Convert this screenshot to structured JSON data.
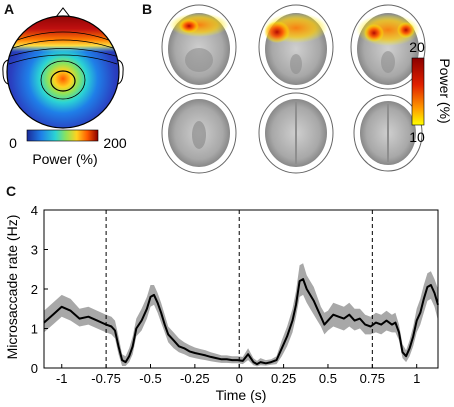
{
  "panels": {
    "a": {
      "letter": "A",
      "colorbar_min": "0",
      "colorbar_max": "200",
      "colorbar_label": "Power (%)"
    },
    "b": {
      "letter": "B",
      "colorbar_top": "20",
      "colorbar_bottom": "10",
      "colorbar_label": "Power (%)"
    },
    "c": {
      "letter": "C"
    }
  },
  "colors": {
    "line": "#000000",
    "band": "#a8a8a8",
    "hot_high": "#8b0000",
    "hot_low": "#ffff00"
  },
  "chart_data": {
    "type": "line",
    "xlabel": "Time (s)",
    "ylabel": "Microsaccade rate (Hz)",
    "xlim": [
      -1.1,
      1.12
    ],
    "ylim": [
      0,
      4
    ],
    "xticks": [
      -1,
      -0.75,
      -0.5,
      -0.25,
      0,
      0.25,
      0.5,
      0.75,
      1
    ],
    "xtick_labels": [
      "-1",
      "-0.75",
      "-0.5",
      "-0.25",
      "0",
      "0.25",
      "0.5",
      "0.75",
      "1"
    ],
    "yticks": [
      0,
      1,
      2,
      3,
      4
    ],
    "ytick_labels": [
      "0",
      "1",
      "2",
      "3",
      "4"
    ],
    "vlines": [
      -0.75,
      0,
      0.75
    ],
    "series": [
      {
        "x": [
          -1.1,
          -1.05,
          -1.0,
          -0.95,
          -0.9,
          -0.85,
          -0.8,
          -0.75,
          -0.72,
          -0.7,
          -0.68,
          -0.66,
          -0.64,
          -0.62,
          -0.6,
          -0.58,
          -0.55,
          -0.52,
          -0.5,
          -0.48,
          -0.46,
          -0.44,
          -0.42,
          -0.4,
          -0.37,
          -0.34,
          -0.31,
          -0.28,
          -0.25,
          -0.22,
          -0.19,
          -0.16,
          -0.13,
          -0.1,
          -0.07,
          -0.04,
          -0.01,
          0.02,
          0.05,
          0.08,
          0.1,
          0.12,
          0.15,
          0.18,
          0.21,
          0.24,
          0.27,
          0.3,
          0.32,
          0.34,
          0.36,
          0.38,
          0.4,
          0.42,
          0.44,
          0.46,
          0.48,
          0.5,
          0.53,
          0.56,
          0.59,
          0.62,
          0.65,
          0.68,
          0.71,
          0.74,
          0.77,
          0.8,
          0.83,
          0.86,
          0.88,
          0.9,
          0.92,
          0.94,
          0.96,
          0.98,
          1.0,
          1.02,
          1.04,
          1.06,
          1.08,
          1.1,
          1.12
        ],
        "mean": [
          1.15,
          1.35,
          1.55,
          1.45,
          1.25,
          1.3,
          1.2,
          1.1,
          1.05,
          0.95,
          0.55,
          0.2,
          0.15,
          0.3,
          0.55,
          1.0,
          1.2,
          1.5,
          1.8,
          1.85,
          1.65,
          1.4,
          1.1,
          0.85,
          0.7,
          0.55,
          0.5,
          0.42,
          0.38,
          0.35,
          0.32,
          0.28,
          0.25,
          0.22,
          0.22,
          0.2,
          0.2,
          0.18,
          0.35,
          0.15,
          0.1,
          0.15,
          0.12,
          0.15,
          0.2,
          0.5,
          0.8,
          1.2,
          1.6,
          2.2,
          2.25,
          2.0,
          1.85,
          1.7,
          1.5,
          1.3,
          1.1,
          1.2,
          1.35,
          1.3,
          1.25,
          1.35,
          1.2,
          1.25,
          1.1,
          1.05,
          1.15,
          1.1,
          1.2,
          1.1,
          1.15,
          0.9,
          0.4,
          0.3,
          0.5,
          0.8,
          1.2,
          1.4,
          1.75,
          2.05,
          2.1,
          1.9,
          1.6
        ],
        "lower": [
          0.9,
          1.1,
          1.3,
          1.2,
          1.05,
          1.1,
          1.0,
          0.9,
          0.85,
          0.75,
          0.35,
          0.05,
          0.05,
          0.15,
          0.35,
          0.8,
          0.95,
          1.25,
          1.55,
          1.6,
          1.4,
          1.15,
          0.9,
          0.65,
          0.5,
          0.4,
          0.35,
          0.28,
          0.25,
          0.22,
          0.2,
          0.17,
          0.15,
          0.13,
          0.13,
          0.12,
          0.12,
          0.1,
          0.2,
          0.07,
          0.04,
          0.07,
          0.06,
          0.08,
          0.1,
          0.3,
          0.55,
          0.9,
          1.3,
          1.8,
          1.85,
          1.65,
          1.5,
          1.35,
          1.2,
          1.05,
          0.85,
          0.95,
          1.05,
          1.0,
          0.95,
          1.05,
          0.95,
          1.0,
          0.85,
          0.85,
          0.9,
          0.85,
          0.95,
          0.9,
          0.9,
          0.7,
          0.25,
          0.15,
          0.3,
          0.55,
          0.9,
          1.1,
          1.4,
          1.7,
          1.75,
          1.55,
          1.2
        ],
        "upper": [
          1.45,
          1.65,
          1.85,
          1.75,
          1.5,
          1.55,
          1.45,
          1.35,
          1.3,
          1.2,
          0.8,
          0.35,
          0.3,
          0.5,
          0.8,
          1.25,
          1.5,
          1.8,
          2.1,
          2.1,
          1.9,
          1.65,
          1.35,
          1.05,
          0.9,
          0.75,
          0.65,
          0.58,
          0.52,
          0.48,
          0.45,
          0.4,
          0.36,
          0.32,
          0.32,
          0.3,
          0.3,
          0.28,
          0.5,
          0.25,
          0.18,
          0.25,
          0.2,
          0.22,
          0.3,
          0.7,
          1.05,
          1.5,
          1.95,
          2.6,
          2.65,
          2.35,
          2.2,
          2.05,
          1.8,
          1.55,
          1.4,
          1.45,
          1.65,
          1.6,
          1.55,
          1.65,
          1.5,
          1.5,
          1.35,
          1.3,
          1.4,
          1.35,
          1.45,
          1.35,
          1.4,
          1.1,
          0.6,
          0.45,
          0.7,
          1.05,
          1.5,
          1.75,
          2.1,
          2.4,
          2.45,
          2.25,
          2.0
        ]
      }
    ]
  }
}
